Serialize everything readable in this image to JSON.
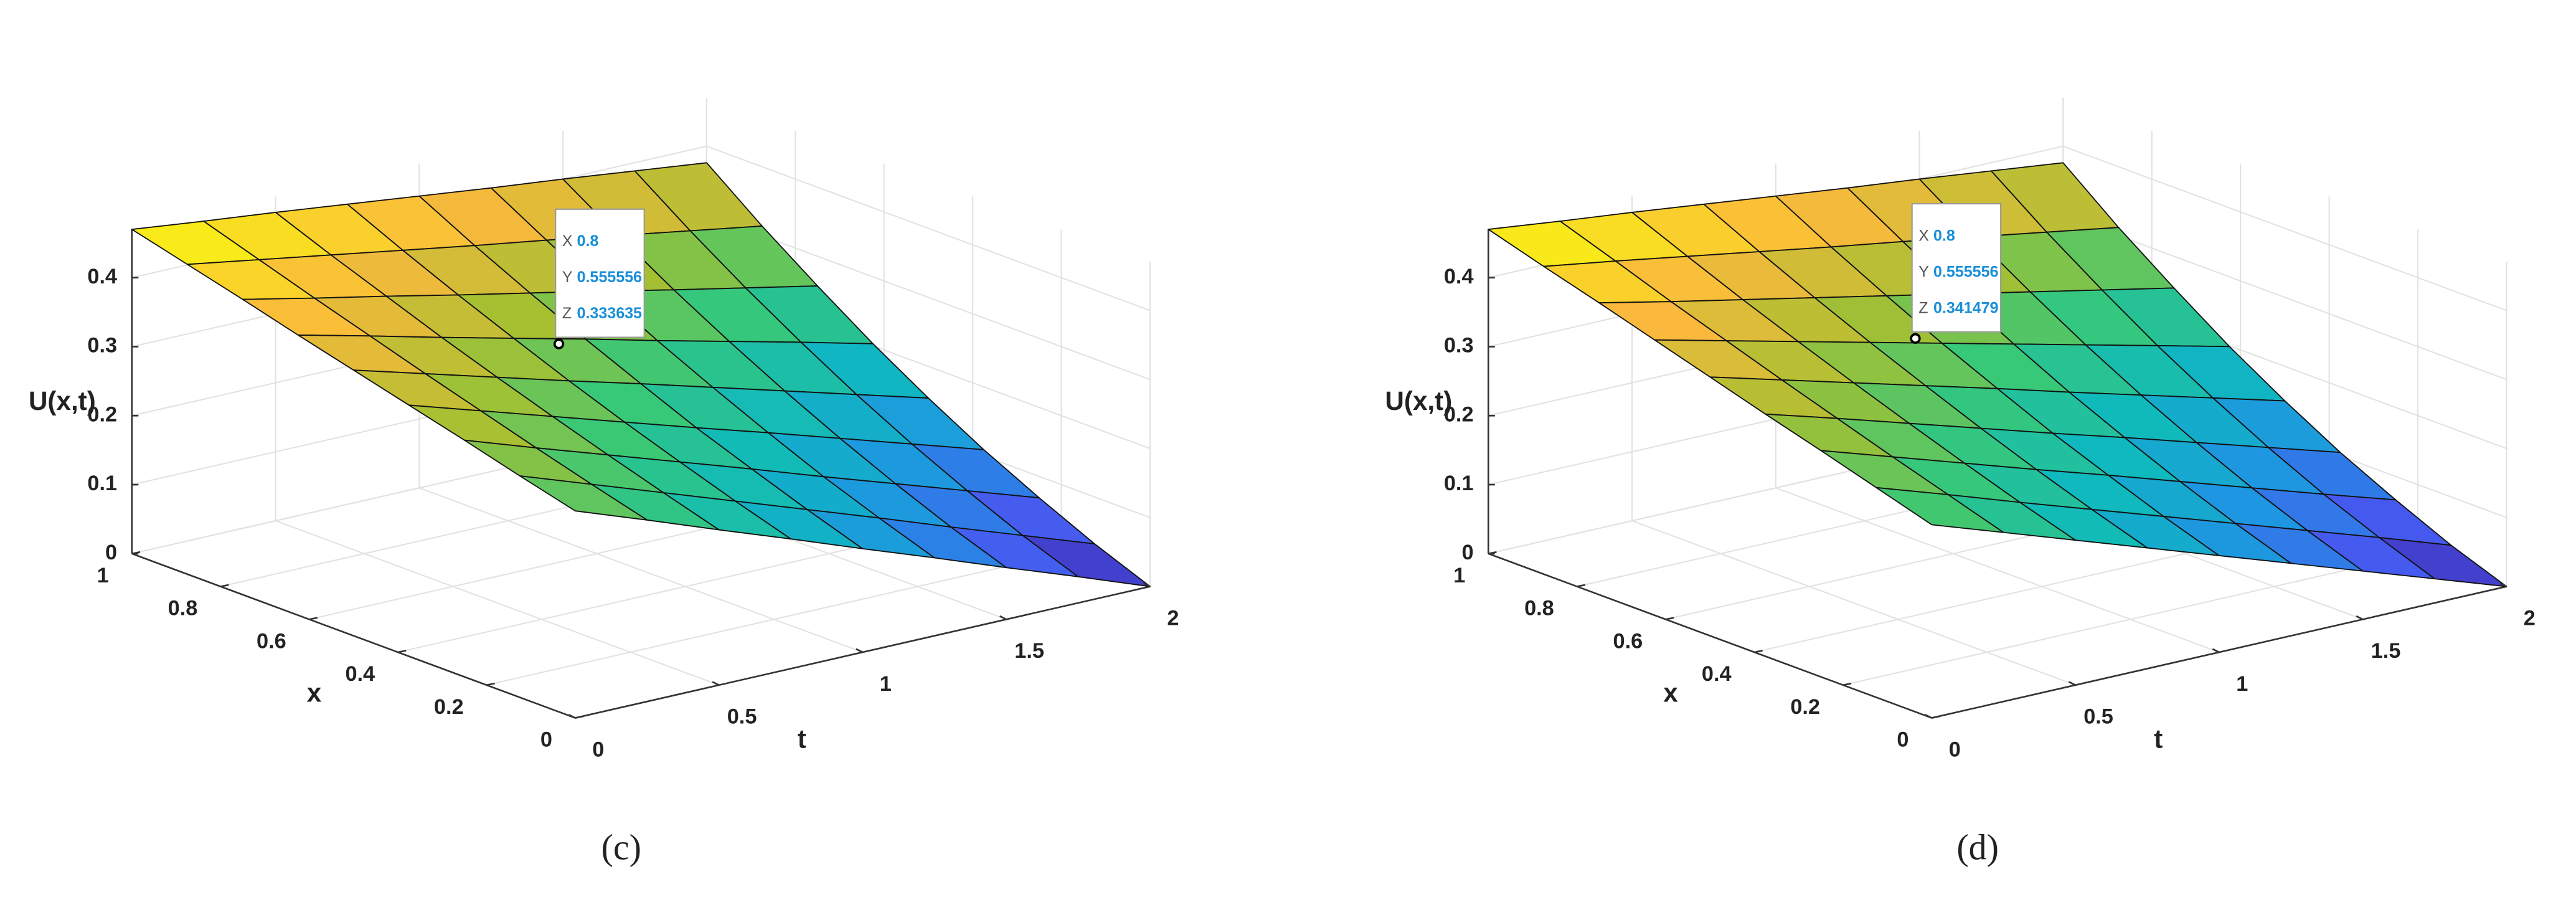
{
  "chart_data": [
    {
      "type": "surface",
      "caption": "(c)",
      "xlabel": "x",
      "ylabel": "t",
      "zlabel": "U(x,t)",
      "x": [
        0,
        0.125,
        0.25,
        0.375,
        0.5,
        0.625,
        0.75,
        0.875,
        1
      ],
      "y": [
        0,
        0.25,
        0.5,
        0.75,
        1,
        1.25,
        1.5,
        1.75,
        2
      ],
      "z": [
        [
          0.3,
          0.263,
          0.225,
          0.188,
          0.15,
          0.113,
          0.075,
          0.038,
          0
        ],
        [
          0.321,
          0.285,
          0.249,
          0.213,
          0.177,
          0.141,
          0.104,
          0.068,
          0.032
        ],
        [
          0.343,
          0.308,
          0.274,
          0.24,
          0.206,
          0.171,
          0.137,
          0.103,
          0.069
        ],
        [
          0.364,
          0.332,
          0.3,
          0.268,
          0.236,
          0.205,
          0.173,
          0.141,
          0.109
        ],
        [
          0.385,
          0.356,
          0.327,
          0.298,
          0.27,
          0.241,
          0.212,
          0.183,
          0.154
        ],
        [
          0.406,
          0.381,
          0.355,
          0.33,
          0.305,
          0.279,
          0.254,
          0.229,
          0.203
        ],
        [
          0.428,
          0.406,
          0.385,
          0.363,
          0.342,
          0.321,
          0.299,
          0.278,
          0.257
        ],
        [
          0.449,
          0.432,
          0.415,
          0.398,
          0.381,
          0.365,
          0.348,
          0.331,
          0.314
        ],
        [
          0.47,
          0.458,
          0.447,
          0.435,
          0.423,
          0.411,
          0.4,
          0.388,
          0.376
        ]
      ],
      "xlim": [
        0,
        1
      ],
      "ylim": [
        0,
        2
      ],
      "zlim": [
        0,
        0.47
      ],
      "xticks": [
        0,
        0.2,
        0.4,
        0.6,
        0.8,
        1
      ],
      "yticks": [
        0,
        0.5,
        1,
        1.5,
        2
      ],
      "zticks": [
        0,
        0.1,
        0.2,
        0.3,
        0.4
      ],
      "grid": true,
      "colormap": "parula",
      "datatip": {
        "labels": [
          "X",
          "Y",
          "Z"
        ],
        "values": [
          0.8,
          0.555556,
          0.333635
        ]
      }
    },
    {
      "type": "surface",
      "caption": "(d)",
      "xlabel": "x",
      "ylabel": "t",
      "zlabel": "U(x,t)",
      "x": [
        0,
        0.125,
        0.25,
        0.375,
        0.5,
        0.625,
        0.75,
        0.875,
        1
      ],
      "y": [
        0,
        0.25,
        0.5,
        0.75,
        1,
        1.25,
        1.5,
        1.75,
        2
      ],
      "z": [
        [
          0.28,
          0.245,
          0.21,
          0.175,
          0.14,
          0.105,
          0.07,
          0.035,
          0
        ],
        [
          0.304,
          0.27,
          0.235,
          0.201,
          0.167,
          0.133,
          0.099,
          0.065,
          0.03
        ],
        [
          0.328,
          0.295,
          0.262,
          0.229,
          0.197,
          0.164,
          0.131,
          0.098,
          0.066
        ],
        [
          0.351,
          0.321,
          0.29,
          0.259,
          0.228,
          0.198,
          0.167,
          0.136,
          0.105
        ],
        [
          0.375,
          0.347,
          0.319,
          0.291,
          0.263,
          0.234,
          0.206,
          0.178,
          0.15
        ],
        [
          0.399,
          0.374,
          0.349,
          0.324,
          0.299,
          0.274,
          0.249,
          0.224,
          0.199
        ],
        [
          0.423,
          0.401,
          0.38,
          0.359,
          0.338,
          0.317,
          0.296,
          0.275,
          0.254
        ],
        [
          0.446,
          0.43,
          0.413,
          0.396,
          0.379,
          0.363,
          0.346,
          0.329,
          0.312
        ],
        [
          0.47,
          0.458,
          0.447,
          0.435,
          0.423,
          0.411,
          0.4,
          0.388,
          0.376
        ]
      ],
      "xlim": [
        0,
        1
      ],
      "ylim": [
        0,
        2
      ],
      "zlim": [
        0,
        0.47
      ],
      "xticks": [
        0,
        0.2,
        0.4,
        0.6,
        0.8,
        1
      ],
      "yticks": [
        0,
        0.5,
        1,
        1.5,
        2
      ],
      "zticks": [
        0,
        0.1,
        0.2,
        0.3,
        0.4
      ],
      "grid": true,
      "colormap": "parula",
      "datatip": {
        "labels": [
          "X",
          "Y",
          "Z"
        ],
        "values": [
          0.8,
          0.555556,
          0.341479
        ]
      }
    }
  ]
}
